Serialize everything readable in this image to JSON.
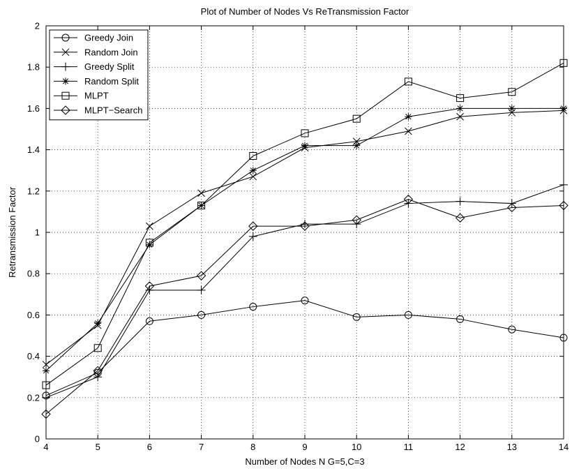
{
  "chart_data": {
    "type": "line",
    "title": "Plot of Number of Nodes Vs ReTransmission Factor",
    "xlabel": "Number of Nodes N G=5,C=3",
    "ylabel": "Retransmission Factor",
    "xlim": [
      4,
      14
    ],
    "ylim": [
      0,
      2
    ],
    "xticks": [
      4,
      5,
      6,
      7,
      8,
      9,
      10,
      11,
      12,
      13,
      14
    ],
    "yticks": [
      0,
      0.2,
      0.4,
      0.6,
      0.8,
      1,
      1.2,
      1.4,
      1.6,
      1.8,
      2
    ],
    "grid": true,
    "legend_position": "top-left",
    "x": [
      4,
      5,
      6,
      7,
      8,
      9,
      10,
      11,
      12,
      13,
      14
    ],
    "series": [
      {
        "name": "Greedy Join",
        "marker": "circle",
        "values": [
          0.21,
          0.32,
          0.57,
          0.6,
          0.64,
          0.67,
          0.59,
          0.6,
          0.58,
          0.53,
          0.49
        ]
      },
      {
        "name": "Random Join",
        "marker": "x",
        "values": [
          0.36,
          0.55,
          1.03,
          1.19,
          1.27,
          1.41,
          1.44,
          1.49,
          1.56,
          1.58,
          1.59
        ]
      },
      {
        "name": "Greedy Split",
        "marker": "plus",
        "values": [
          0.2,
          0.3,
          0.72,
          0.72,
          0.98,
          1.04,
          1.04,
          1.14,
          1.15,
          1.14,
          1.23
        ]
      },
      {
        "name": "Random Split",
        "marker": "star",
        "values": [
          0.33,
          0.56,
          0.94,
          1.13,
          1.3,
          1.42,
          1.42,
          1.56,
          1.6,
          1.6,
          1.6
        ]
      },
      {
        "name": "MLPT",
        "marker": "square",
        "values": [
          0.26,
          0.44,
          0.95,
          1.13,
          1.37,
          1.48,
          1.55,
          1.73,
          1.65,
          1.68,
          1.82
        ]
      },
      {
        "name": "MLPT−Search",
        "marker": "diamond",
        "values": [
          0.12,
          0.33,
          0.74,
          0.79,
          1.03,
          1.03,
          1.06,
          1.16,
          1.07,
          1.12,
          1.13
        ]
      }
    ]
  }
}
